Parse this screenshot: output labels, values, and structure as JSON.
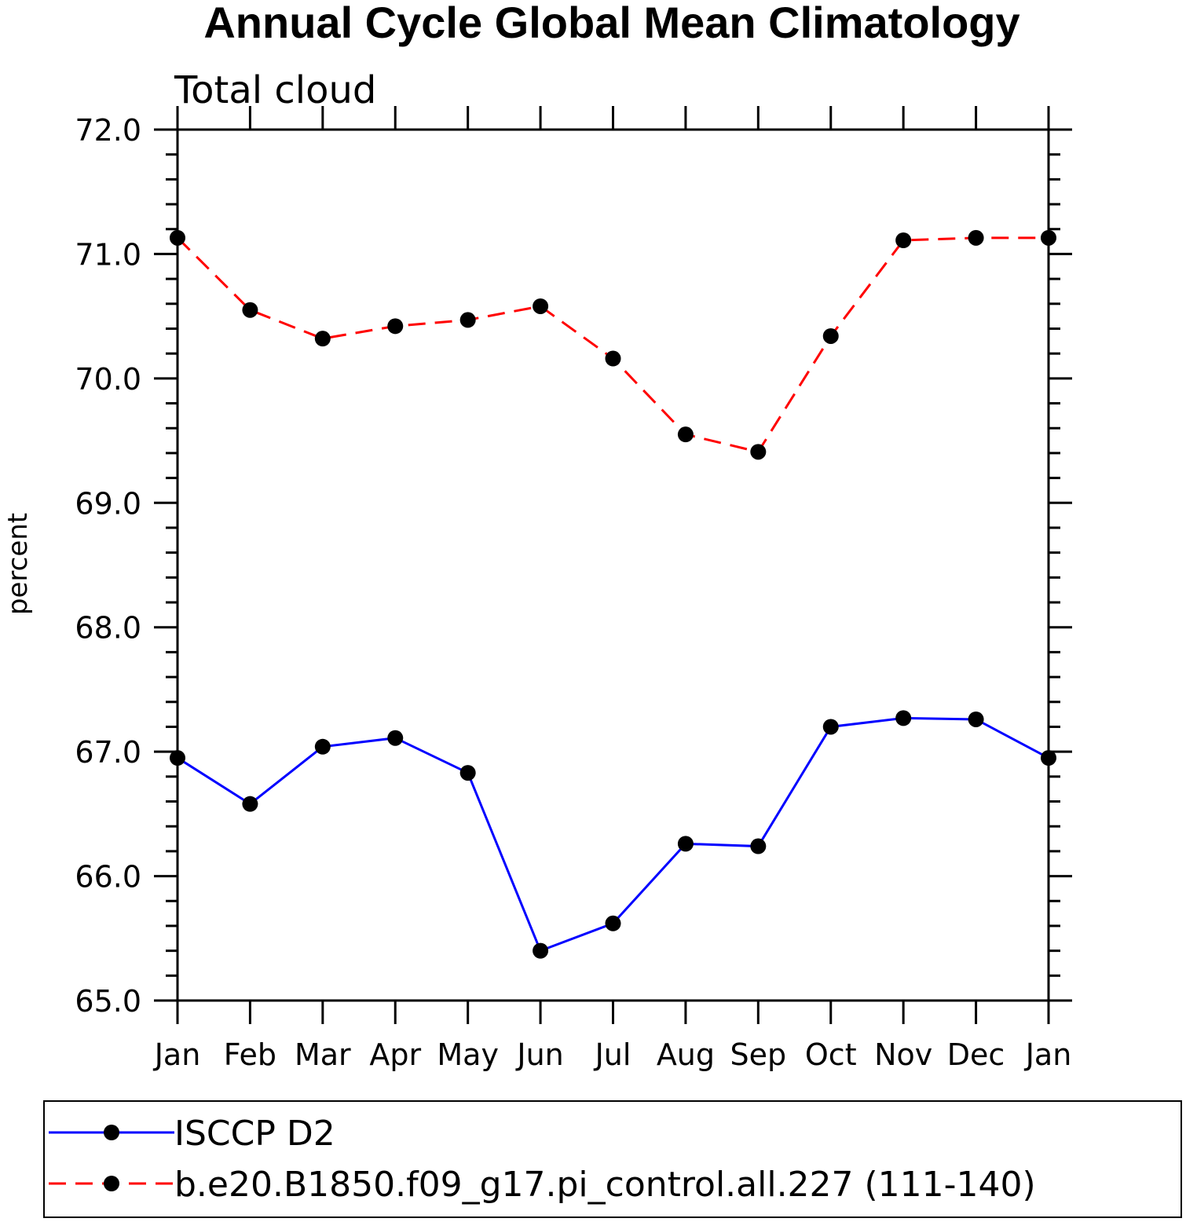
{
  "chart_data": {
    "type": "line",
    "title": "Annual Cycle Global Mean Climatology",
    "subtitle": "Total cloud",
    "xlabel": "",
    "ylabel": "percent",
    "categories": [
      "Jan",
      "Feb",
      "Mar",
      "Apr",
      "May",
      "Jun",
      "Jul",
      "Aug",
      "Sep",
      "Oct",
      "Nov",
      "Dec",
      "Jan"
    ],
    "ylim": [
      65.0,
      72.0
    ],
    "yticks": [
      "65.0",
      "66.0",
      "67.0",
      "68.0",
      "69.0",
      "70.0",
      "71.0",
      "72.0"
    ],
    "grid": false,
    "legend_position": "bottom",
    "series": [
      {
        "name": "ISCCP D2",
        "color": "#0000ff",
        "style": "solid",
        "values": [
          66.95,
          66.58,
          67.04,
          67.11,
          66.83,
          65.4,
          65.62,
          66.26,
          66.24,
          67.2,
          67.27,
          67.26,
          66.95
        ]
      },
      {
        "name": "b.e20.B1850.f09_g17.pi_control.all.227 (111-140)",
        "color": "#ff0000",
        "style": "dashed",
        "values": [
          71.13,
          70.55,
          70.32,
          70.42,
          70.47,
          70.58,
          70.16,
          69.55,
          69.41,
          70.34,
          71.11,
          71.13,
          71.13
        ]
      }
    ]
  }
}
